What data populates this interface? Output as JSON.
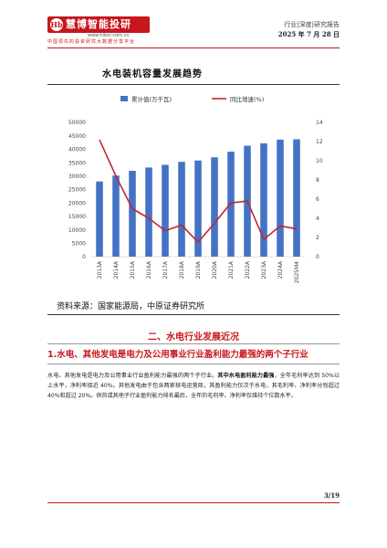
{
  "header": {
    "logo_mark": "Hb",
    "logo_text": "慧博智能投研",
    "logo_url": "www.hibor.com.cn",
    "slogan": "中国领先的投资研究大数据分享平台",
    "category": "行业|深度|研究报告",
    "date": "2025 年 7 月 28 日"
  },
  "figure": {
    "title": "水电装机容量发展趋势",
    "source": "资料来源：国家能源局，中原证券研究所"
  },
  "chart_data": {
    "type": "bar",
    "categories": [
      "2013A",
      "2014A",
      "2015A",
      "2016A",
      "2017A",
      "2018A",
      "2019A",
      "2020A",
      "2021A",
      "2022A",
      "2023A",
      "2024A",
      "2025M4"
    ],
    "series": [
      {
        "name": "累计值(万千瓦)",
        "type": "bar",
        "axis": "left",
        "color": "#4472c4",
        "values": [
          28000,
          30200,
          31950,
          33200,
          34200,
          35300,
          35800,
          37000,
          39100,
          41300,
          42200,
          43600,
          43700
        ]
      },
      {
        "name": "同比增速(%)",
        "type": "line",
        "axis": "right",
        "color": "#c0282e",
        "values": [
          12.2,
          8.4,
          5.0,
          4.0,
          2.7,
          3.3,
          1.5,
          3.5,
          5.6,
          5.8,
          1.8,
          3.2,
          2.9
        ]
      }
    ],
    "left_axis": {
      "min": 0,
      "max": 50000,
      "ticks": [
        "0",
        "5000",
        "10000",
        "15000",
        "20000",
        "25000",
        "30000",
        "35000",
        "40000",
        "45000",
        "50000"
      ]
    },
    "right_axis": {
      "min": 0,
      "max": 14,
      "ticks": [
        "0",
        "2",
        "4",
        "6",
        "8",
        "10",
        "12",
        "14"
      ]
    },
    "legend_position": "top"
  },
  "section": {
    "title": "二、水电行业发展近况",
    "subtitle": "1.水电、其他发电是电力及公用事业行业盈利能力最强的两个子行业"
  },
  "body": {
    "p1": "水电、其他发电是电力及公用事业行业盈利能力最强的两个子行业。",
    "p1_bold": "其中水电盈利能力最强",
    "p2": "，全年毛利率达到 50%以上水平，净利率接近 40%。其他发电由于包含两家核电运营商，其盈利能力仅次于水电，其毛利率、净利率分别超过 40%和超过 20%。供热或其他子行业盈利能力排名最后，全年的毛利率、净利率仅维持个位数水平。"
  },
  "footer": {
    "page": "3/19"
  }
}
